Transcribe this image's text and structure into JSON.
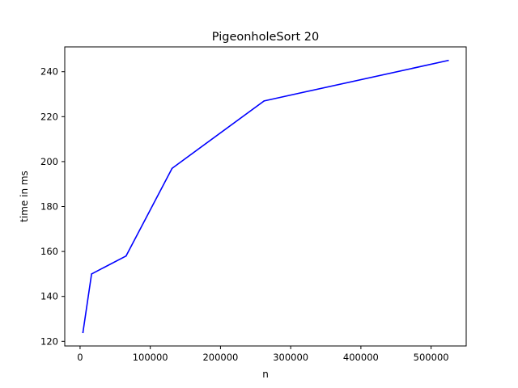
{
  "chart_data": {
    "type": "line",
    "title": "PigeonholeSort 20",
    "xlabel": "n",
    "ylabel": "time in ms",
    "xlim": [
      -21824,
      550000
    ],
    "ylim": [
      117.95,
      251.05
    ],
    "xticks": [
      0,
      100000,
      200000,
      300000,
      400000,
      500000
    ],
    "xtick_labels": [
      "0",
      "100000",
      "200000",
      "300000",
      "400000",
      "500000"
    ],
    "yticks": [
      120,
      140,
      160,
      180,
      200,
      220,
      240
    ],
    "ytick_labels": [
      "120",
      "140",
      "160",
      "180",
      "200",
      "220",
      "240"
    ],
    "grid": false,
    "series": [
      {
        "color": "#0000ff",
        "x": [
          4096,
          16384,
          65536,
          131072,
          262144,
          524288
        ],
        "y": [
          124,
          150,
          158,
          197,
          227,
          245
        ]
      }
    ]
  }
}
